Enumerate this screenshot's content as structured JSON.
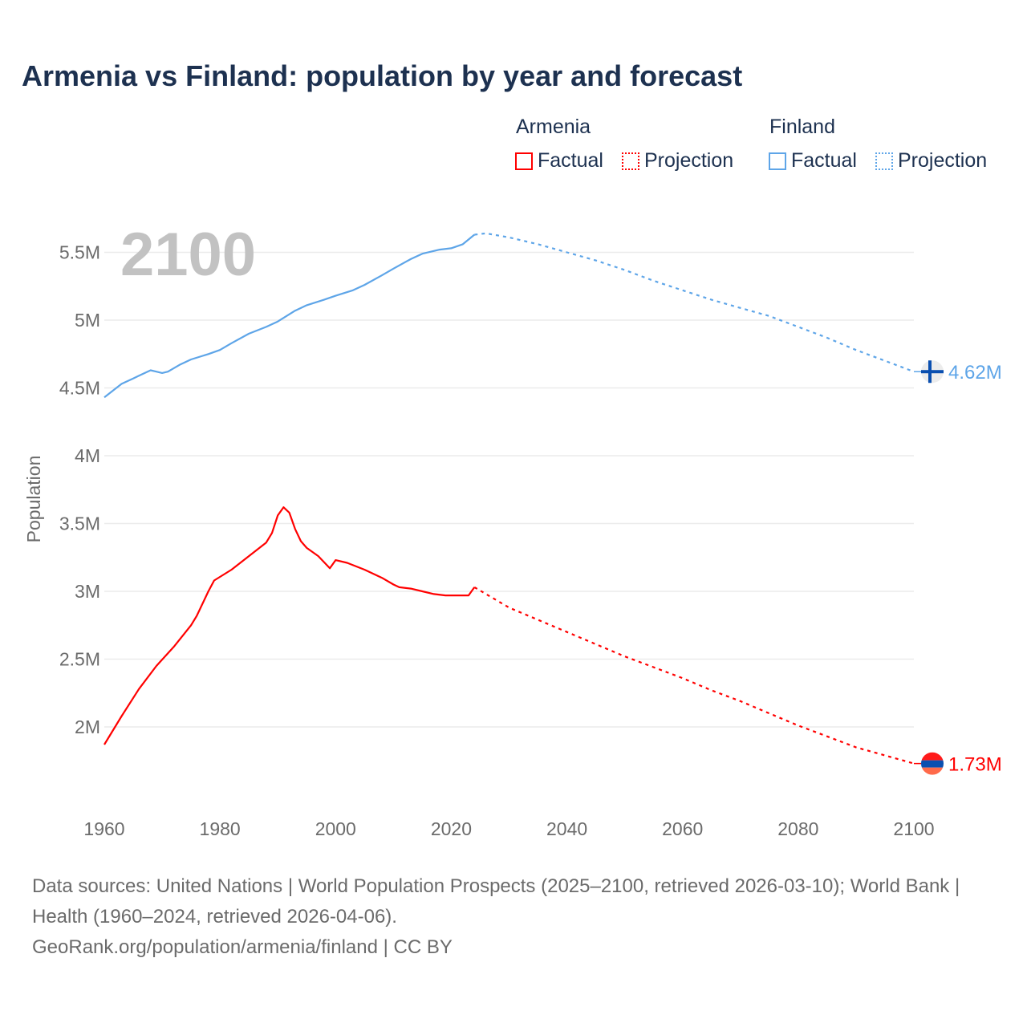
{
  "title": "Armenia vs Finland: population by year and forecast",
  "legend": {
    "groups": [
      {
        "name": "Armenia",
        "factual": "Factual",
        "projection": "Projection",
        "color": "#ff0000"
      },
      {
        "name": "Finland",
        "factual": "Factual",
        "projection": "Projection",
        "color": "#5ea5e8"
      }
    ]
  },
  "source_lines": [
    "Data sources: United Nations | World Population Prospects (2025–2100, retrieved 2026-03-10); World Bank | Health (1960–2024, retrieved 2026-04-06).",
    "GeoRank.org/population/armenia/finland | CC BY"
  ],
  "chart_data": {
    "type": "line",
    "title": "Armenia vs Finland: population by year and forecast",
    "year_watermark": "2100",
    "xlabel": "",
    "ylabel": "Population",
    "xlim": [
      1960,
      2100
    ],
    "ylim": [
      1.5,
      5.75
    ],
    "x_ticks": [
      1960,
      1980,
      2000,
      2020,
      2040,
      2060,
      2080,
      2100
    ],
    "y_ticks": [
      {
        "v": 2,
        "label": "2M"
      },
      {
        "v": 2.5,
        "label": "2.5M"
      },
      {
        "v": 3,
        "label": "3M"
      },
      {
        "v": 3.5,
        "label": "3.5M"
      },
      {
        "v": 4,
        "label": "4M"
      },
      {
        "v": 4.5,
        "label": "4.5M"
      },
      {
        "v": 5,
        "label": "5M"
      },
      {
        "v": 5.5,
        "label": "5.5M"
      }
    ],
    "units": "millions",
    "series": [
      {
        "name": "Finland",
        "color": "#5ea5e8",
        "end_label": "4.62M",
        "flag": "finland-flag",
        "factual": [
          [
            1960,
            4.43
          ],
          [
            1963,
            4.53
          ],
          [
            1965,
            4.57
          ],
          [
            1966,
            4.59
          ],
          [
            1968,
            4.63
          ],
          [
            1969,
            4.62
          ],
          [
            1970,
            4.61
          ],
          [
            1971,
            4.62
          ],
          [
            1973,
            4.67
          ],
          [
            1975,
            4.71
          ],
          [
            1978,
            4.75
          ],
          [
            1980,
            4.78
          ],
          [
            1982,
            4.83
          ],
          [
            1985,
            4.9
          ],
          [
            1988,
            4.95
          ],
          [
            1990,
            4.99
          ],
          [
            1993,
            5.07
          ],
          [
            1995,
            5.11
          ],
          [
            1998,
            5.15
          ],
          [
            2000,
            5.18
          ],
          [
            2003,
            5.22
          ],
          [
            2005,
            5.26
          ],
          [
            2008,
            5.33
          ],
          [
            2010,
            5.38
          ],
          [
            2013,
            5.45
          ],
          [
            2015,
            5.49
          ],
          [
            2018,
            5.52
          ],
          [
            2020,
            5.53
          ],
          [
            2022,
            5.56
          ],
          [
            2024,
            5.63
          ]
        ],
        "projection": [
          [
            2024,
            5.63
          ],
          [
            2026,
            5.64
          ],
          [
            2030,
            5.61
          ],
          [
            2035,
            5.56
          ],
          [
            2040,
            5.5
          ],
          [
            2045,
            5.44
          ],
          [
            2050,
            5.37
          ],
          [
            2055,
            5.29
          ],
          [
            2060,
            5.22
          ],
          [
            2065,
            5.15
          ],
          [
            2070,
            5.09
          ],
          [
            2075,
            5.03
          ],
          [
            2080,
            4.95
          ],
          [
            2085,
            4.87
          ],
          [
            2090,
            4.78
          ],
          [
            2095,
            4.7
          ],
          [
            2100,
            4.62
          ]
        ]
      },
      {
        "name": "Armenia",
        "color": "#ff0000",
        "end_label": "1.73M",
        "flag": "armenia-flag",
        "factual": [
          [
            1960,
            1.87
          ],
          [
            1963,
            2.08
          ],
          [
            1966,
            2.28
          ],
          [
            1969,
            2.45
          ],
          [
            1972,
            2.59
          ],
          [
            1975,
            2.75
          ],
          [
            1976,
            2.82
          ],
          [
            1978,
            3.0
          ],
          [
            1979,
            3.08
          ],
          [
            1982,
            3.16
          ],
          [
            1985,
            3.26
          ],
          [
            1988,
            3.36
          ],
          [
            1989,
            3.43
          ],
          [
            1990,
            3.56
          ],
          [
            1991,
            3.62
          ],
          [
            1992,
            3.58
          ],
          [
            1993,
            3.46
          ],
          [
            1994,
            3.37
          ],
          [
            1995,
            3.32
          ],
          [
            1997,
            3.26
          ],
          [
            1999,
            3.17
          ],
          [
            2000,
            3.23
          ],
          [
            2002,
            3.21
          ],
          [
            2005,
            3.16
          ],
          [
            2008,
            3.1
          ],
          [
            2010,
            3.05
          ],
          [
            2011,
            3.03
          ],
          [
            2013,
            3.02
          ],
          [
            2015,
            3.0
          ],
          [
            2017,
            2.98
          ],
          [
            2019,
            2.97
          ],
          [
            2021,
            2.97
          ],
          [
            2023,
            2.97
          ],
          [
            2024,
            3.03
          ]
        ],
        "projection": [
          [
            2024,
            3.03
          ],
          [
            2030,
            2.88
          ],
          [
            2035,
            2.79
          ],
          [
            2040,
            2.7
          ],
          [
            2045,
            2.61
          ],
          [
            2050,
            2.52
          ],
          [
            2055,
            2.44
          ],
          [
            2060,
            2.36
          ],
          [
            2065,
            2.27
          ],
          [
            2070,
            2.19
          ],
          [
            2075,
            2.1
          ],
          [
            2080,
            2.01
          ],
          [
            2085,
            1.93
          ],
          [
            2090,
            1.85
          ],
          [
            2095,
            1.79
          ],
          [
            2100,
            1.73
          ]
        ]
      }
    ]
  }
}
